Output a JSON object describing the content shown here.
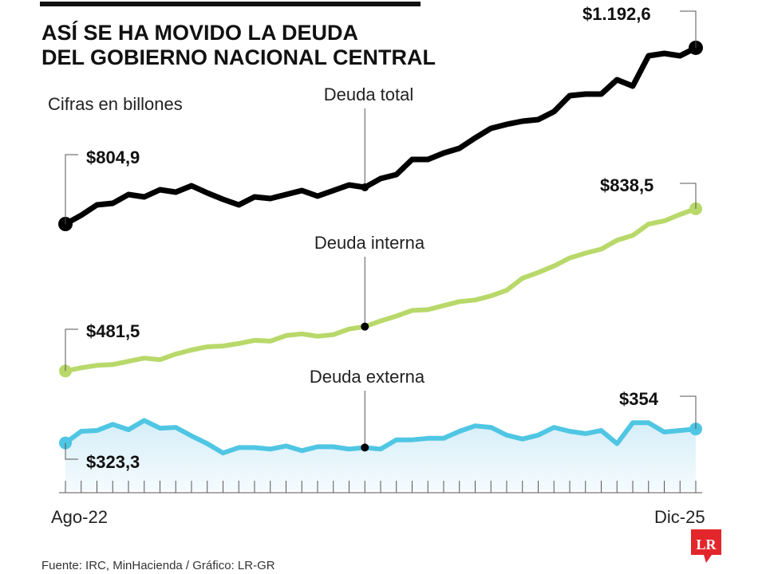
{
  "title_lines": [
    "ASÍ SE HA MOVIDO LA DEUDA",
    "DEL GOBIERNO NACIONAL CENTRAL"
  ],
  "subtitle": "Cifras en billones",
  "source": "Fuente: IRC, MinHacienda / Gráfico: LR-GR",
  "logo_text": "LR",
  "chart_data": {
    "type": "line",
    "title": "Así se ha movido la deuda del Gobierno Nacional Central",
    "unit": "billones de pesos",
    "x_start_label": "Ago-22",
    "x_end_label": "Dic-25",
    "n_points": 41,
    "series": [
      {
        "name": "Deuda total",
        "color": "#000000",
        "first_label": "$804,9",
        "last_label": "$1.192,6",
        "values": [
          804.9,
          824.2,
          847.0,
          850.5,
          869.8,
          864.5,
          880.3,
          875.1,
          889.1,
          873.3,
          859.3,
          847.0,
          864.5,
          861.0,
          869.8,
          878.6,
          866.3,
          878.6,
          890.8,
          885.6,
          904.9,
          913.6,
          947.0,
          947.0,
          961.0,
          971.5,
          994.3,
          1015.4,
          1024.1,
          1031.2,
          1034.7,
          1052.2,
          1087.3,
          1090.8,
          1090.8,
          1122.4,
          1108.3,
          1175.0,
          1180.2,
          1175.0,
          1192.6
        ]
      },
      {
        "name": "Deuda interna",
        "color": "#b8d96a",
        "first_label": "$481,5",
        "last_label": "$838,5",
        "values": [
          481.5,
          488.6,
          493.9,
          495.7,
          502.8,
          509.9,
          506.4,
          518.8,
          527.7,
          534.8,
          536.6,
          541.9,
          549.0,
          547.2,
          559.6,
          563.2,
          557.9,
          561.4,
          573.9,
          579.2,
          591.6,
          602.3,
          614.7,
          616.5,
          625.4,
          634.2,
          637.8,
          646.7,
          659.1,
          685.7,
          698.2,
          712.4,
          730.1,
          740.8,
          749.7,
          769.2,
          779.9,
          804.7,
          811.8,
          826.0,
          838.5
        ]
      },
      {
        "name": "Deuda externa",
        "color": "#4fc6e3",
        "first_label": "$323,3",
        "last_label": "$354",
        "values": [
          323.3,
          348.9,
          350.6,
          364.2,
          352.3,
          372.8,
          355.7,
          357.4,
          338.7,
          321.6,
          301.1,
          313.1,
          313.1,
          309.7,
          316.5,
          306.2,
          314.8,
          314.8,
          309.7,
          313.1,
          309.7,
          330.1,
          330.1,
          333.5,
          333.5,
          348.9,
          360.8,
          357.4,
          340.4,
          331.8,
          340.4,
          357.4,
          348.9,
          343.8,
          350.6,
          321.6,
          367.7,
          367.7,
          347.2,
          350.6,
          354.0
        ]
      }
    ],
    "grid": false,
    "legend": "inline annotations"
  }
}
